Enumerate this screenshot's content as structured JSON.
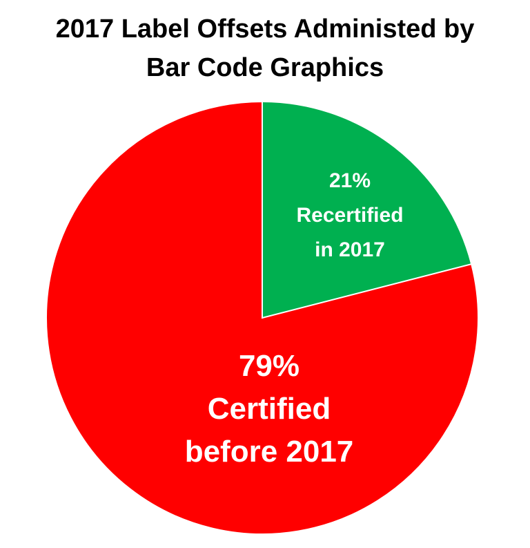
{
  "chart_data": {
    "type": "pie",
    "title": "2017 Label Offsets Administed by Bar Code Graphics",
    "categories": [
      "Recertified in 2017",
      "Certified before 2017"
    ],
    "values": [
      21,
      79
    ],
    "value_labels": [
      "21%",
      "79%"
    ],
    "colors": [
      "#00b050",
      "#ff0000"
    ]
  }
}
